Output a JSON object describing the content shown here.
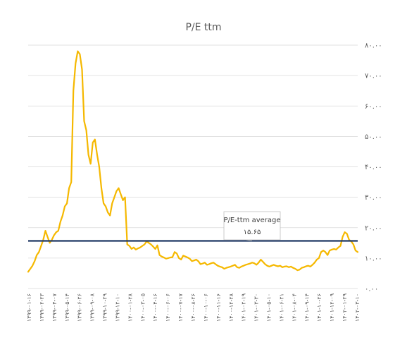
{
  "chart_data": {
    "type": "line",
    "title": "P/E ttm",
    "xlabel": "",
    "ylabel": "",
    "ylim": [
      0,
      80
    ],
    "grid": true,
    "y_ticks": [
      "۰.۰۰",
      "۱۰.۰۰",
      "۲۰.۰۰",
      "۳۰.۰۰",
      "۴۰.۰۰",
      "۵۰.۰۰",
      "۶۰.۰۰",
      "۷۰.۰۰",
      "۸۰.۰۰"
    ],
    "y_tick_values": [
      0,
      10,
      20,
      30,
      40,
      50,
      60,
      70,
      80
    ],
    "x_ticks": [
      "۱۳۹۹-۰۱-۱۶",
      "۱۳۹۹-۰۲-۲۳",
      "۱۳۹۹-۰۴-۰۷",
      "۱۳۹۹-۰۵-۱۴",
      "۱۳۹۹-۰۶-۲۶",
      "۱۳۹۹-۰۹-۰۸",
      "۱۳۹۹-۱۰-۲۹",
      "۱۳۹۹-۱۲-۱۰",
      "۱۴۰۰-۰۱-۲۸",
      "۱۴۰۰-۰۳-۰۵",
      "۱۴۰۰-۰۴-۱۶",
      "۱۴۰۰-۰۶-۰۶",
      "۱۴۰۰-۰۷-۱۷",
      "۱۴۰۰-۰۸-۲۶",
      "۱۴۰۰-۱۰-۰۶",
      "۱۴۰۰-۱۱-۱۶",
      "۱۴۰۰-۱۲-۲۸",
      "۱۴۰۱-۰۲-۱۹",
      "۱۴۰۱-۰۳-۳۰",
      "۱۴۰۱-۰۵-۱۰",
      "۱۴۰۱-۰۶-۲۱",
      "۱۴۰۱-۰۸-۰۴",
      "۱۴۰۱-۰۹-۱۴",
      "۱۴۰۱-۱۰-۲۶",
      "۱۴۰۱-۱۲-۰۹",
      "۱۴۰۲-۰۱-۲۹",
      "۱۴۰۲-۰۳-۱۰"
    ],
    "series": [
      {
        "name": "",
        "color": "#F5B800",
        "values": [
          5.5,
          6.5,
          7.5,
          9,
          11,
          12,
          14,
          16,
          19,
          17,
          15,
          16,
          17.5,
          18.5,
          19,
          22,
          24,
          27,
          28,
          33,
          35,
          65,
          74,
          78,
          77,
          72,
          55,
          52,
          44,
          41,
          48,
          49,
          44,
          40,
          33,
          28,
          27,
          25,
          24,
          28,
          30,
          32,
          33,
          31,
          29,
          30,
          14.5,
          14,
          13,
          13.5,
          12.8,
          13.2,
          13.5,
          14,
          14.5,
          15.5,
          15,
          14.5,
          13.8,
          13,
          14.2,
          11,
          10.5,
          10.2,
          9.8,
          10,
          10.2,
          10.3,
          12,
          11.5,
          10,
          9.5,
          10.8,
          10.5,
          10.2,
          9.8,
          9,
          9.2,
          9.5,
          9,
          8,
          8.2,
          8.5,
          7.8,
          8,
          8.3,
          8.5,
          8,
          7.5,
          7.2,
          7,
          6.5,
          6.8,
          7,
          7.2,
          7.5,
          7.8,
          7,
          6.8,
          7.2,
          7.5,
          7.8,
          8,
          8.2,
          8.5,
          8.3,
          7.8,
          8.5,
          9.5,
          8.8,
          8,
          7.5,
          7.2,
          7.5,
          7.8,
          7.5,
          7.3,
          7.5,
          7,
          7.2,
          7.3,
          7,
          7.2,
          6.8,
          6.5,
          6,
          6.2,
          6.8,
          7,
          7.3,
          7.5,
          7.2,
          7.8,
          8.5,
          9.5,
          10,
          12,
          12.5,
          12,
          11,
          12.5,
          12.8,
          13,
          12.8,
          13.5,
          14,
          17,
          18.5,
          18,
          16,
          15.5,
          14.5,
          12.5,
          12
        ]
      }
    ],
    "average_line": {
      "value": 15.65,
      "color": "#1F3864"
    },
    "annotation": {
      "title": "P/E-ttm average",
      "value": "۱۵.۶۵"
    }
  }
}
